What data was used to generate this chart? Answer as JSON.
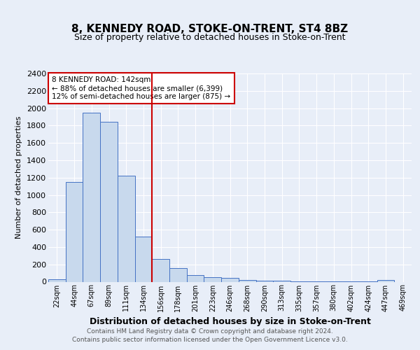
{
  "title": "8, KENNEDY ROAD, STOKE-ON-TRENT, ST4 8BZ",
  "subtitle": "Size of property relative to detached houses in Stoke-on-Trent",
  "xlabel": "Distribution of detached houses by size in Stoke-on-Trent",
  "ylabel": "Number of detached properties",
  "bin_labels": [
    "22sqm",
    "44sqm",
    "67sqm",
    "89sqm",
    "111sqm",
    "134sqm",
    "156sqm",
    "178sqm",
    "201sqm",
    "223sqm",
    "246sqm",
    "268sqm",
    "290sqm",
    "313sqm",
    "335sqm",
    "357sqm",
    "380sqm",
    "402sqm",
    "424sqm",
    "447sqm",
    "469sqm"
  ],
  "bar_values": [
    25,
    1150,
    1950,
    1840,
    1220,
    520,
    265,
    155,
    80,
    50,
    42,
    20,
    15,
    10,
    5,
    4,
    2,
    2,
    1,
    20,
    0
  ],
  "bar_color": "#c8d9ed",
  "bar_edge_color": "#4472c4",
  "vline_x_idx": 5.5,
  "vline_color": "#cc0000",
  "annotation_text": "8 KENNEDY ROAD: 142sqm\n← 88% of detached houses are smaller (6,399)\n12% of semi-detached houses are larger (875) →",
  "annotation_box_color": "#ffffff",
  "annotation_box_edge_color": "#cc0000",
  "ylim": [
    0,
    2400
  ],
  "yticks": [
    0,
    200,
    400,
    600,
    800,
    1000,
    1200,
    1400,
    1600,
    1800,
    2000,
    2200,
    2400
  ],
  "footer_line1": "Contains HM Land Registry data © Crown copyright and database right 2024.",
  "footer_line2": "Contains public sector information licensed under the Open Government Licence v3.0.",
  "bg_color": "#e8eef8",
  "plot_bg_color": "#e8eef8"
}
